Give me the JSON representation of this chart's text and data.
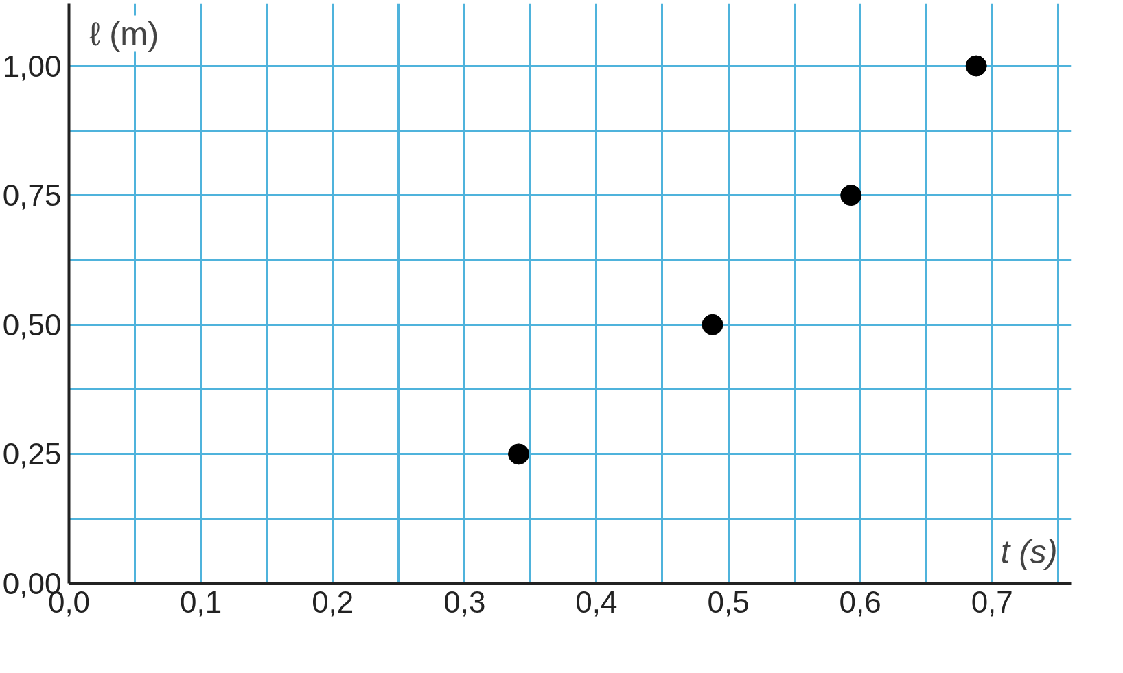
{
  "chart_data": {
    "type": "scatter",
    "xlabel": "t (s)",
    "ylabel": "ℓ (m)",
    "x": [
      0.341,
      0.488,
      0.593,
      0.688
    ],
    "series": [
      {
        "color": "#000000",
        "values": [
          0.25,
          0.5,
          0.75,
          1.0
        ]
      }
    ],
    "xlim": [
      0,
      0.76
    ],
    "ylim": [
      0,
      1.12
    ],
    "xticks": [
      {
        "value": 0,
        "label": "0,0"
      },
      {
        "value": 0.1,
        "label": "0,1"
      },
      {
        "value": 0.2,
        "label": "0,2"
      },
      {
        "value": 0.3,
        "label": "0,3"
      },
      {
        "value": 0.4,
        "label": "0,4"
      },
      {
        "value": 0.5,
        "label": "0,5"
      },
      {
        "value": 0.6,
        "label": "0,6"
      },
      {
        "value": 0.7,
        "label": "0,7"
      }
    ],
    "yticks": [
      {
        "value": 0,
        "label": "0,00"
      },
      {
        "value": 0.25,
        "label": "0,25"
      },
      {
        "value": 0.5,
        "label": "0,50"
      },
      {
        "value": 0.75,
        "label": "0,75"
      },
      {
        "value": 1.0,
        "label": "1,00"
      }
    ],
    "grid": true,
    "marker": "circle"
  }
}
